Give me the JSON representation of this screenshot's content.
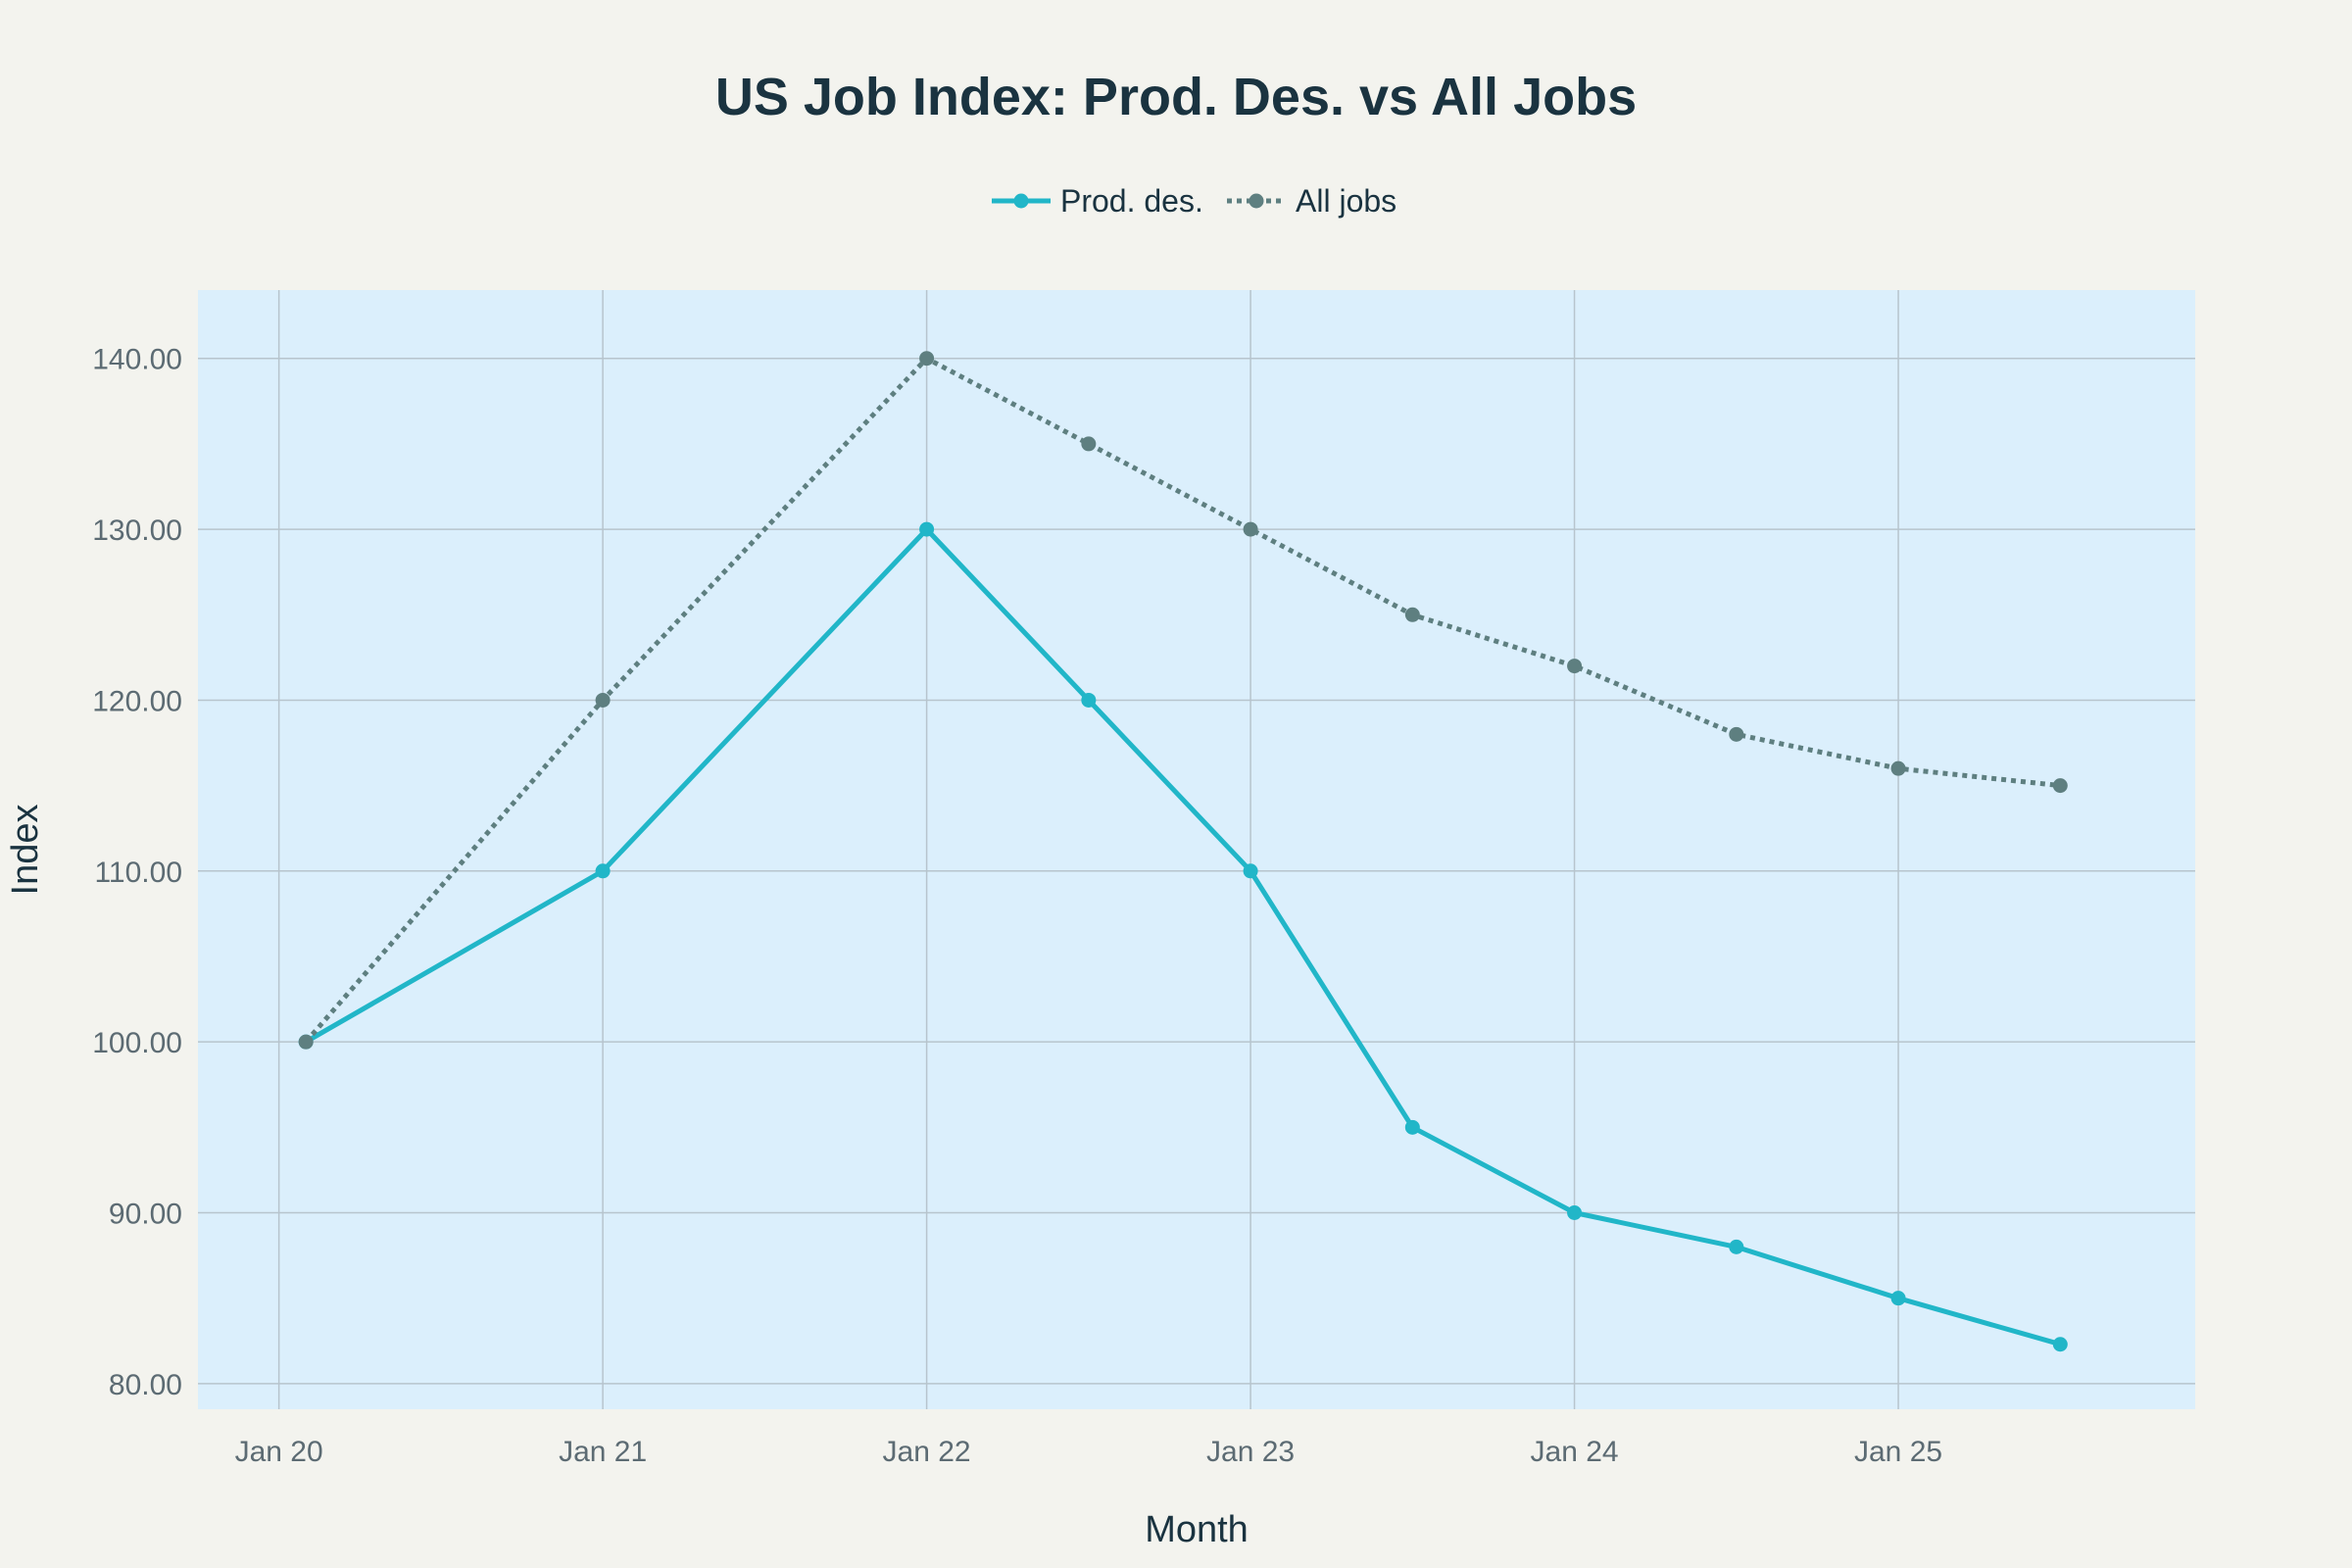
{
  "chart_data": {
    "type": "line",
    "title": "US Job Index: Prod. Des. vs All Jobs",
    "xlabel": "Month",
    "ylabel": "Index",
    "x_tick_labels": [
      "Jan 20",
      "Jan 21",
      "Jan 22",
      "Jan 23",
      "Jan 24",
      "Jan 25"
    ],
    "y_tick_labels": [
      "80.00",
      "90.00",
      "100.00",
      "110.00",
      "120.00",
      "130.00",
      "140.00"
    ],
    "y_ticks": [
      80,
      90,
      100,
      110,
      120,
      130,
      140
    ],
    "x_ticks": [
      "2020-01",
      "2021-01",
      "2022-01",
      "2023-01",
      "2024-01",
      "2025-01"
    ],
    "xlim": [
      "2019-10",
      "2025-12"
    ],
    "ylim": [
      78.5,
      144
    ],
    "grid": true,
    "legend_position": "top-center",
    "series": [
      {
        "name": "Prod. des.",
        "color": "#21b6c8",
        "line_style": "solid",
        "x": [
          "2020-02",
          "2021-01",
          "2022-01",
          "2022-07",
          "2023-01",
          "2023-07",
          "2024-01",
          "2024-07",
          "2025-01",
          "2025-07"
        ],
        "y": [
          100,
          110,
          130,
          120,
          110,
          95,
          90,
          88,
          85,
          82.3
        ]
      },
      {
        "name": "All jobs",
        "color": "#5e7f80",
        "line_style": "dotted",
        "x": [
          "2020-02",
          "2021-01",
          "2022-01",
          "2022-07",
          "2023-01",
          "2023-07",
          "2024-01",
          "2024-07",
          "2025-01",
          "2025-07"
        ],
        "y": [
          100,
          120,
          140,
          135,
          130,
          125,
          122,
          118,
          116,
          115
        ]
      }
    ]
  },
  "colors": {
    "page_background": "#f3f3ee",
    "plot_background": "#dbeffc",
    "grid": "#b7c4cd",
    "title": "#1a3340",
    "tick_text": "#5c6b73",
    "axis_label": "#1a3340"
  }
}
